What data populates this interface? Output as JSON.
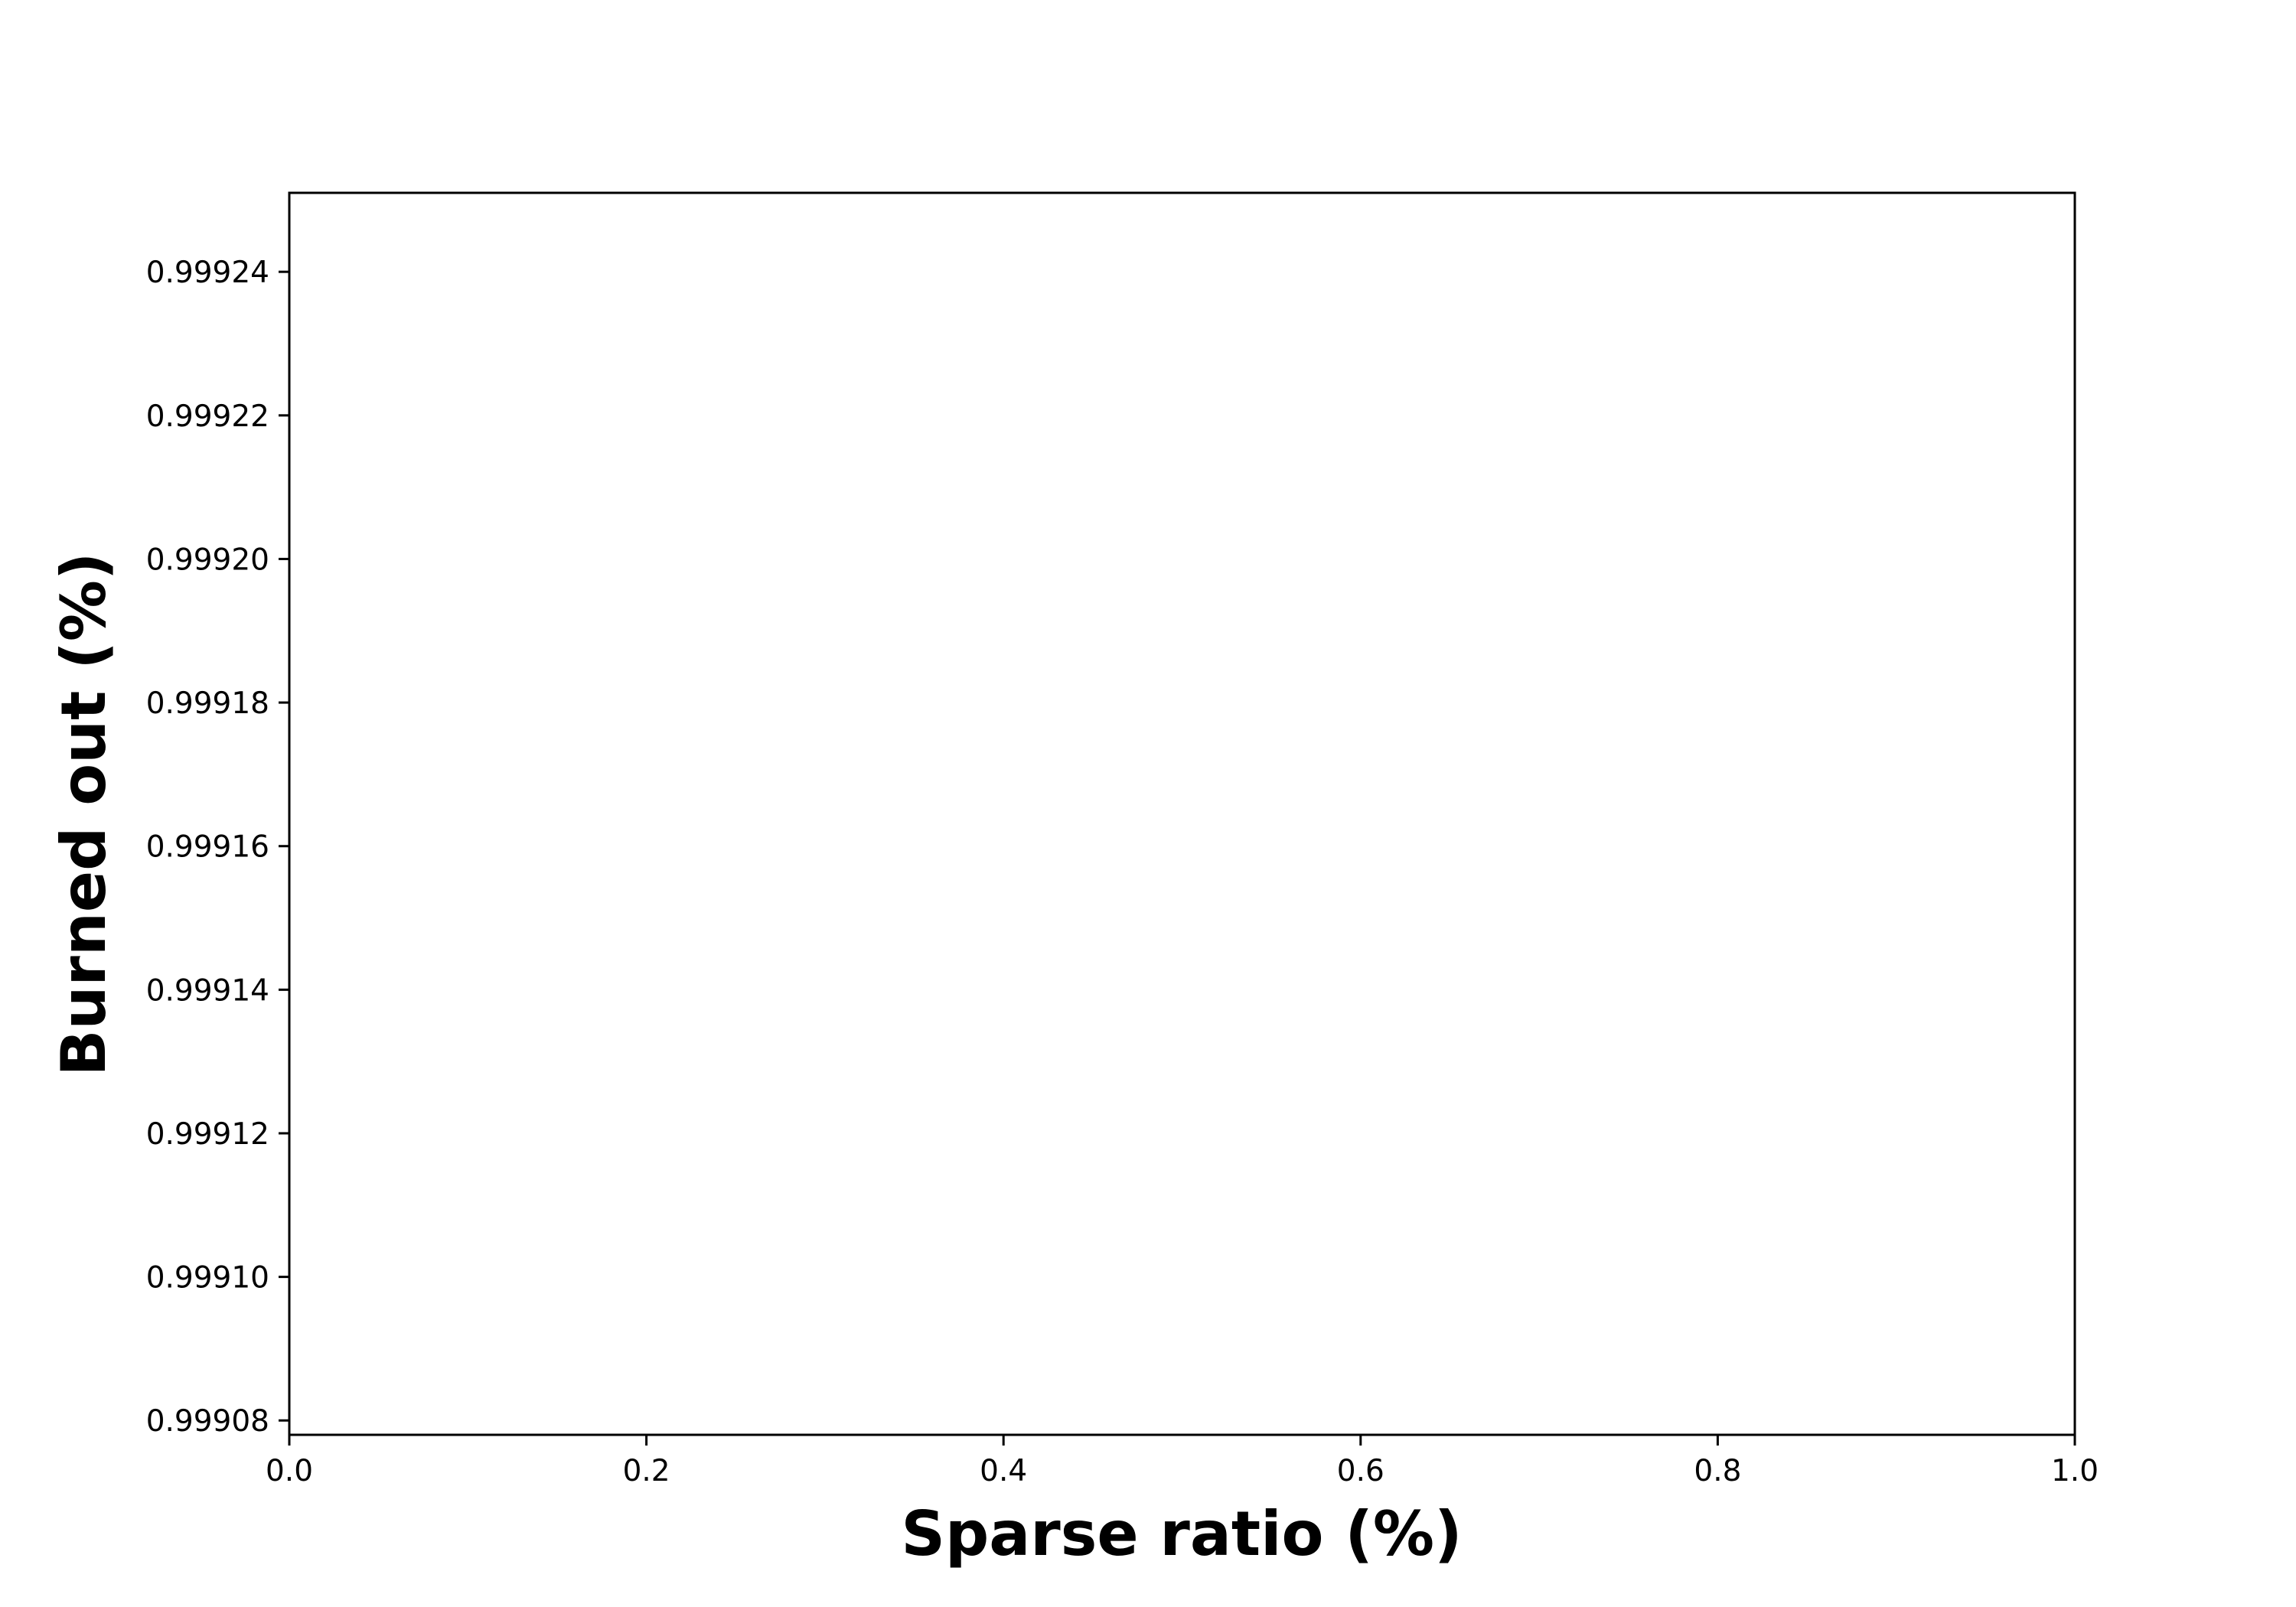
{
  "chart_data": {
    "type": "line",
    "title": "",
    "xlabel": "Sparse ratio (%)",
    "ylabel": "Burned out (%)",
    "xlim": [
      0.0,
      1.0
    ],
    "ylim": [
      0.999078,
      0.999251
    ],
    "x_ticks": [
      0.0,
      0.2,
      0.4,
      0.6,
      0.8,
      1.0
    ],
    "x_tick_labels": [
      "0.0",
      "0.2",
      "0.4",
      "0.6",
      "0.8",
      "1.0"
    ],
    "y_ticks": [
      0.99908,
      0.9991,
      0.99912,
      0.99914,
      0.99916,
      0.99918,
      0.9992,
      0.99922,
      0.99924
    ],
    "y_tick_labels": [
      "0.99908",
      "0.99910",
      "0.99912",
      "0.99914",
      "0.99916",
      "0.99918",
      "0.99920",
      "0.99922",
      "0.99924"
    ],
    "series": [],
    "grid": false,
    "legend": false
  }
}
